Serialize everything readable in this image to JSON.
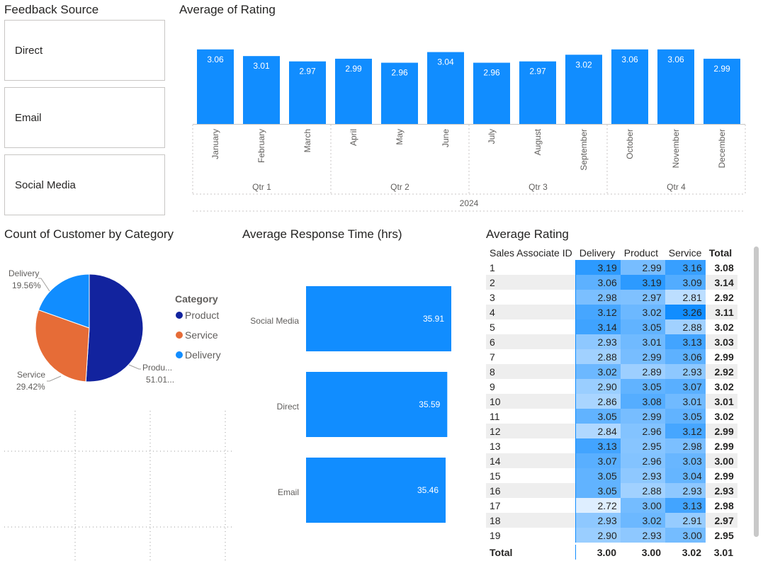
{
  "slicer": {
    "title": "Feedback Source",
    "items": [
      "Direct",
      "Email",
      "Social Media"
    ]
  },
  "monthly_chart": {
    "title": "Average of Rating",
    "year_label": "2024"
  },
  "pie_chart": {
    "title": "Count of Customer by Category",
    "legend_title": "Category"
  },
  "response_chart": {
    "title": "Average Response Time (hrs)"
  },
  "matrix": {
    "title": "Average Rating",
    "headers": [
      "Sales Associate ID",
      "Delivery",
      "Product",
      "Service",
      "Total"
    ],
    "rows": [
      [
        "1",
        "3.19",
        "2.99",
        "3.16",
        "3.08"
      ],
      [
        "2",
        "3.06",
        "3.19",
        "3.09",
        "3.14"
      ],
      [
        "3",
        "2.98",
        "2.97",
        "2.81",
        "2.92"
      ],
      [
        "4",
        "3.12",
        "3.02",
        "3.26",
        "3.11"
      ],
      [
        "5",
        "3.14",
        "3.05",
        "2.88",
        "3.02"
      ],
      [
        "6",
        "2.93",
        "3.01",
        "3.13",
        "3.03"
      ],
      [
        "7",
        "2.88",
        "2.99",
        "3.06",
        "2.99"
      ],
      [
        "8",
        "3.02",
        "2.89",
        "2.93",
        "2.92"
      ],
      [
        "9",
        "2.90",
        "3.05",
        "3.07",
        "3.02"
      ],
      [
        "10",
        "2.86",
        "3.08",
        "3.01",
        "3.01"
      ],
      [
        "11",
        "3.05",
        "2.99",
        "3.05",
        "3.02"
      ],
      [
        "12",
        "2.84",
        "2.96",
        "3.12",
        "2.99"
      ],
      [
        "13",
        "3.13",
        "2.95",
        "2.98",
        "2.99"
      ],
      [
        "14",
        "3.07",
        "2.96",
        "3.03",
        "3.00"
      ],
      [
        "15",
        "3.05",
        "2.93",
        "3.04",
        "2.99"
      ],
      [
        "16",
        "3.05",
        "2.88",
        "2.93",
        "2.93"
      ],
      [
        "17",
        "2.72",
        "3.00",
        "3.13",
        "2.98"
      ],
      [
        "18",
        "2.93",
        "3.02",
        "2.91",
        "2.97"
      ],
      [
        "19",
        "2.90",
        "2.93",
        "3.00",
        "2.95"
      ]
    ],
    "total": [
      "Total",
      "3.00",
      "3.00",
      "3.02",
      "3.01"
    ]
  },
  "colors": {
    "bar_blue": "#118dff",
    "product": "#12239e",
    "service": "#e66c37",
    "delivery": "#118dff",
    "heat_low": "#deeeff",
    "heat_high": "#118dff"
  },
  "chart_data": [
    {
      "type": "bar",
      "title": "Average of Rating",
      "categories": [
        "January",
        "February",
        "March",
        "April",
        "May",
        "June",
        "July",
        "August",
        "September",
        "October",
        "November",
        "December"
      ],
      "groups": [
        {
          "label": "Qtr 1",
          "months": [
            "January",
            "February",
            "March"
          ]
        },
        {
          "label": "Qtr 2",
          "months": [
            "April",
            "May",
            "June"
          ]
        },
        {
          "label": "Qtr 3",
          "months": [
            "July",
            "August",
            "September"
          ]
        },
        {
          "label": "Qtr 4",
          "months": [
            "October",
            "November",
            "December"
          ]
        }
      ],
      "year": "2024",
      "values": [
        3.06,
        3.01,
        2.97,
        2.99,
        2.96,
        3.04,
        2.96,
        2.97,
        3.02,
        3.06,
        3.06,
        2.99
      ],
      "labels": [
        "3.06",
        "3.01",
        "2.97",
        "2.99",
        "2.96",
        "3.04",
        "2.96",
        "2.97",
        "3.02",
        "3.06",
        "3.06",
        "2.99"
      ]
    },
    {
      "type": "pie",
      "title": "Count of Customer by Category",
      "categories": [
        "Product",
        "Service",
        "Delivery"
      ],
      "values": [
        51.01,
        29.42,
        19.56
      ],
      "slice_labels": [
        {
          "name": "Produ...",
          "pct": "51.01..."
        },
        {
          "name": "Service",
          "pct": "29.42%"
        },
        {
          "name": "Delivery",
          "pct": "19.56%"
        }
      ]
    },
    {
      "type": "bar",
      "orientation": "horizontal",
      "title": "Average Response Time (hrs)",
      "categories": [
        "Social Media",
        "Direct",
        "Email"
      ],
      "values": [
        35.91,
        35.59,
        35.46
      ],
      "labels": [
        "35.91",
        "35.59",
        "35.46"
      ]
    }
  ]
}
